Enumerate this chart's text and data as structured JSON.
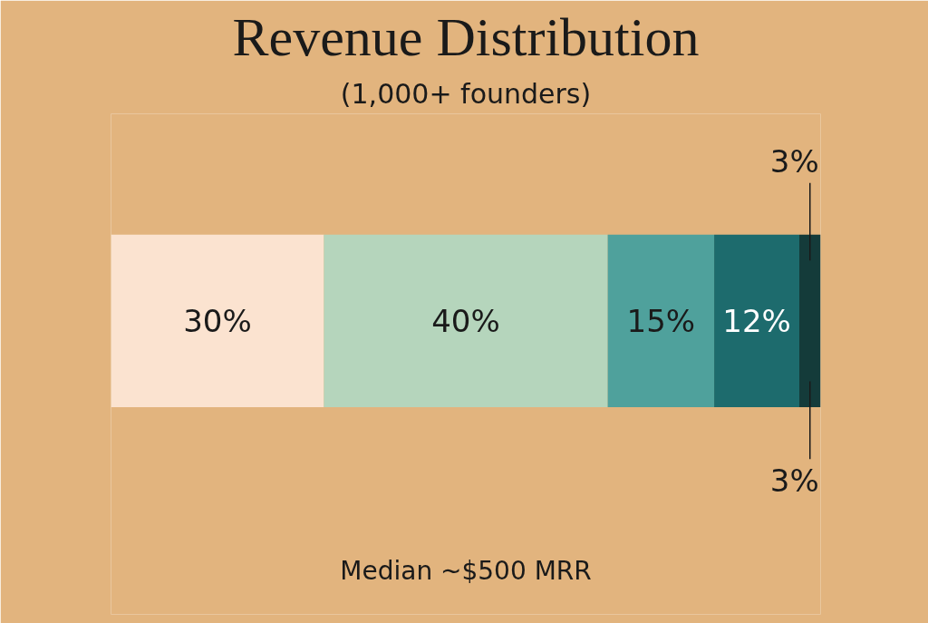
{
  "chart_data": {
    "type": "bar",
    "orientation": "horizontal",
    "stacked": true,
    "title": "Revenue Distribution",
    "subtitle": "(1,000+ founders)",
    "categories": [
      null
    ],
    "xlim": [
      0,
      100
    ],
    "tick_labels": false,
    "grid": false,
    "series": [
      {
        "color": "#fbe3d0",
        "values": [
          30
        ],
        "value_labels": [
          "30%"
        ]
      },
      {
        "color": "#b5d5bc",
        "values": [
          40
        ],
        "value_labels": [
          "40%"
        ]
      },
      {
        "color": "#4fa19c",
        "values": [
          15
        ],
        "value_labels": [
          "15%"
        ]
      },
      {
        "color": "#1d6b6d",
        "values": [
          12
        ],
        "value_labels": [
          "12%"
        ]
      },
      {
        "color": "#143b3a",
        "values": [
          3
        ],
        "value_labels": [
          "3%"
        ]
      }
    ],
    "annotations": [
      "3%",
      "Median ~$500 MRR"
    ]
  }
}
